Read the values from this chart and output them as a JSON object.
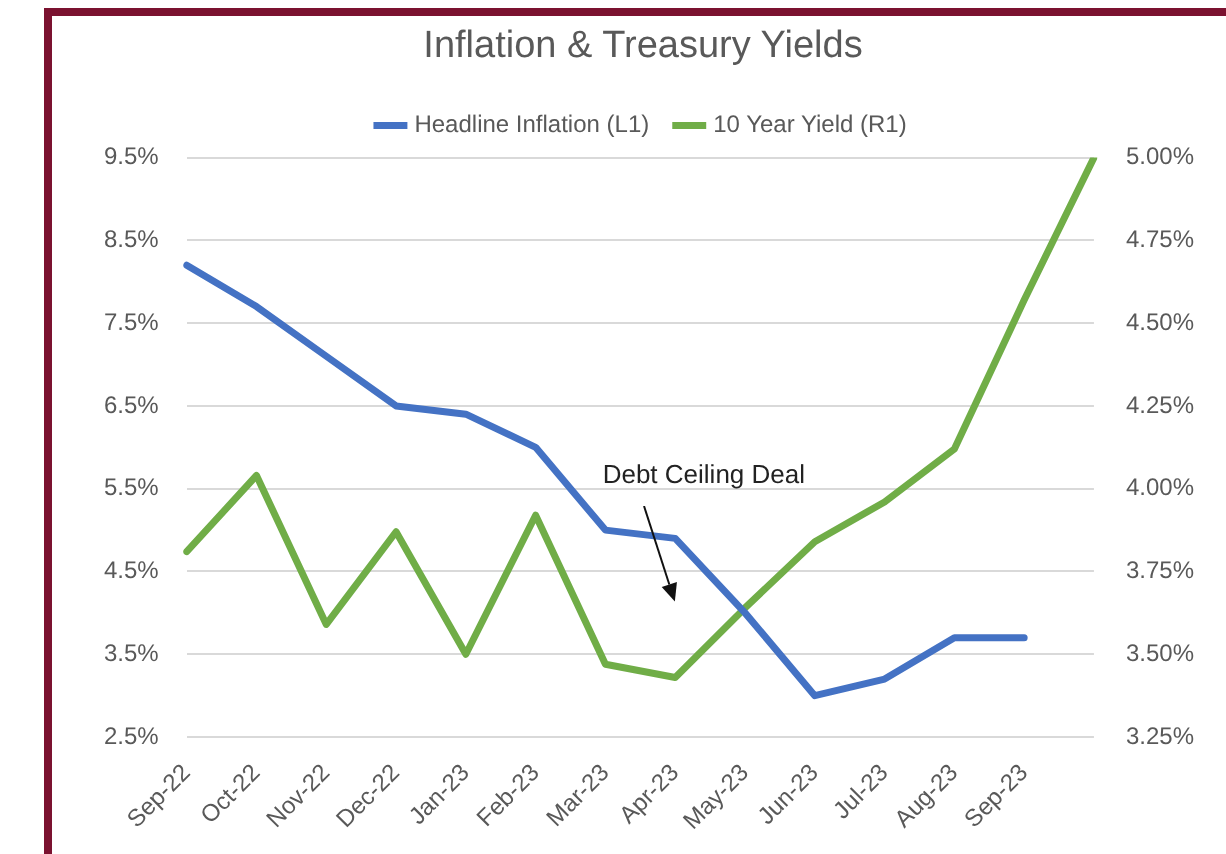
{
  "chart_data": {
    "type": "line",
    "title": "Inflation & Treasury Yields",
    "categories": [
      "Sep-22",
      "Oct-22",
      "Nov-22",
      "Dec-22",
      "Jan-23",
      "Feb-23",
      "Mar-23",
      "Apr-23",
      "May-23",
      "Jun-23",
      "Jul-23",
      "Aug-23",
      "Sep-23",
      null
    ],
    "series": [
      {
        "name": "Headline Inflation (L1)",
        "color": "#4472c4",
        "values": [
          8.2,
          7.7,
          7.1,
          6.5,
          6.4,
          6.0,
          5.0,
          4.9,
          4.0,
          3.0,
          3.2,
          3.7,
          3.7,
          null
        ]
      },
      {
        "name": "10 Year Yield (R1)",
        "color": "#70ad47",
        "axis": "y2",
        "values": [
          3.81,
          4.04,
          3.59,
          3.87,
          3.5,
          3.92,
          3.47,
          3.43,
          3.64,
          3.84,
          3.96,
          4.12,
          4.57,
          5.0
        ]
      }
    ],
    "ylim": [
      2.5,
      9.5
    ],
    "yticks": [
      {
        "value": 2.5,
        "label": "2.5%"
      },
      {
        "value": 3.5,
        "label": "3.5%"
      },
      {
        "value": 4.5,
        "label": "4.5%"
      },
      {
        "value": 5.5,
        "label": "5.5%"
      },
      {
        "value": 6.5,
        "label": "6.5%"
      },
      {
        "value": 7.5,
        "label": "7.5%"
      },
      {
        "value": 8.5,
        "label": "8.5%"
      },
      {
        "value": 9.5,
        "label": "9.5%"
      }
    ],
    "y2lim": [
      3.25,
      5.0
    ],
    "y2ticks": [
      {
        "value": 3.25,
        "label": "3.25%"
      },
      {
        "value": 3.5,
        "label": "3.50%"
      },
      {
        "value": 3.75,
        "label": "3.75%"
      },
      {
        "value": 4.0,
        "label": "4.00%"
      },
      {
        "value": 4.25,
        "label": "4.25%"
      },
      {
        "value": 4.5,
        "label": "4.50%"
      },
      {
        "value": 4.75,
        "label": "4.75%"
      },
      {
        "value": 5.0,
        "label": "5.00%"
      }
    ],
    "annotations": [
      "Debt Ceiling Deal"
    ],
    "grid": "y",
    "legend": "top",
    "marker": "none",
    "line_style": "solid"
  }
}
